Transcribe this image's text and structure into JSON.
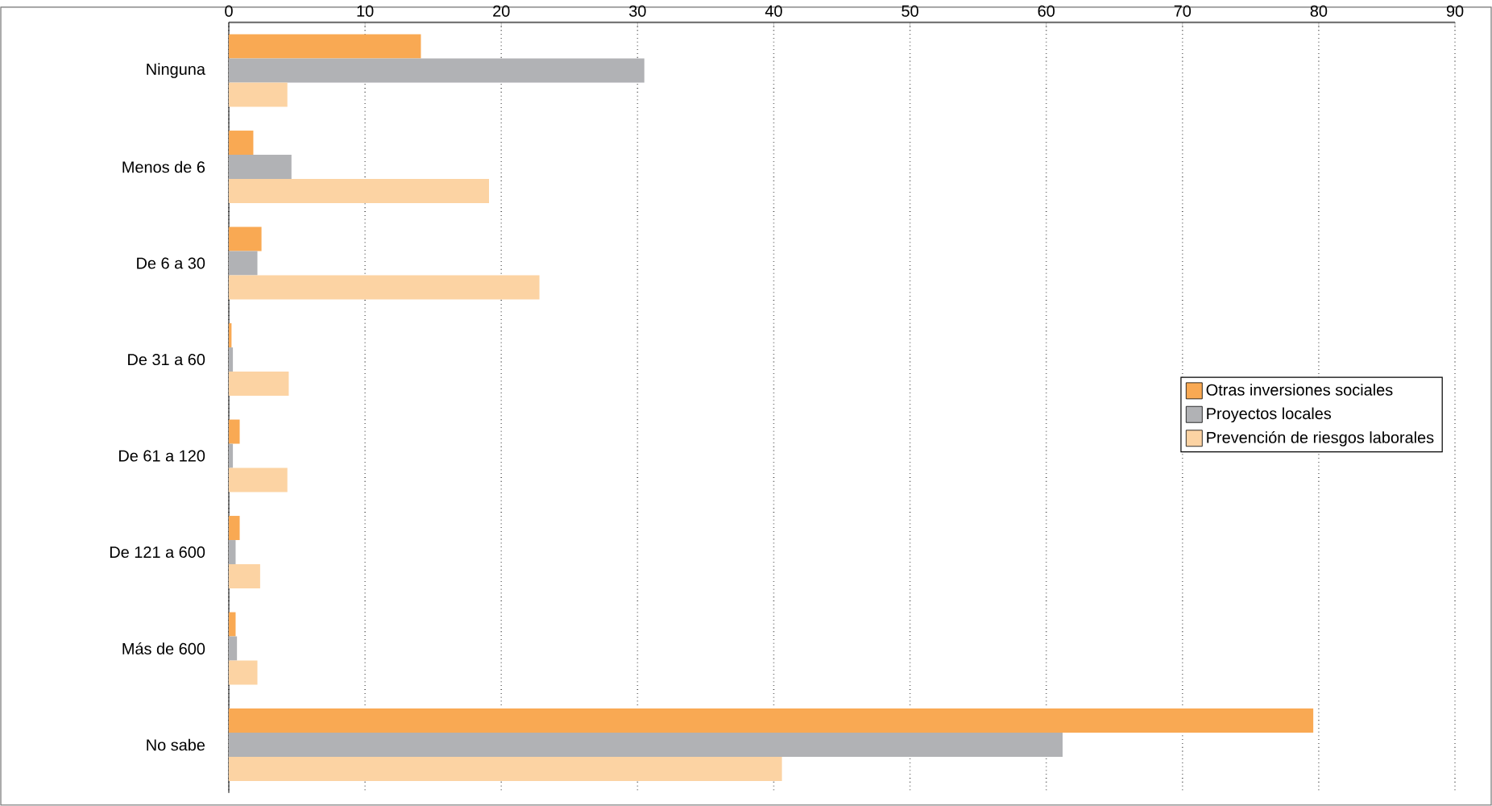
{
  "chart_data": {
    "type": "bar",
    "orientation": "horizontal",
    "categories": [
      "Ninguna",
      "Menos de 6",
      "De 6 a 30",
      "De 31 a 60",
      "De 61 a 120",
      "De 121 a 600",
      "Más de 600",
      "No sabe"
    ],
    "series": [
      {
        "name": "Otras inversiones sociales",
        "color": "#f9a953",
        "values": [
          14.1,
          1.8,
          2.4,
          0.2,
          0.8,
          0.8,
          0.5,
          79.6
        ]
      },
      {
        "name": "Proyectos locales",
        "color": "#b1b2b5",
        "values": [
          30.5,
          4.6,
          2.1,
          0.3,
          0.3,
          0.5,
          0.6,
          61.2
        ]
      },
      {
        "name": "Prevención de riesgos laborales",
        "color": "#fcd3a3",
        "values": [
          4.3,
          19.1,
          22.8,
          4.4,
          4.3,
          2.3,
          2.1,
          40.6
        ]
      }
    ],
    "xlim": [
      0,
      90
    ],
    "xticks": [
      0,
      10,
      20,
      30,
      40,
      50,
      60,
      70,
      80,
      90
    ],
    "grid": "x",
    "legend": "right"
  }
}
